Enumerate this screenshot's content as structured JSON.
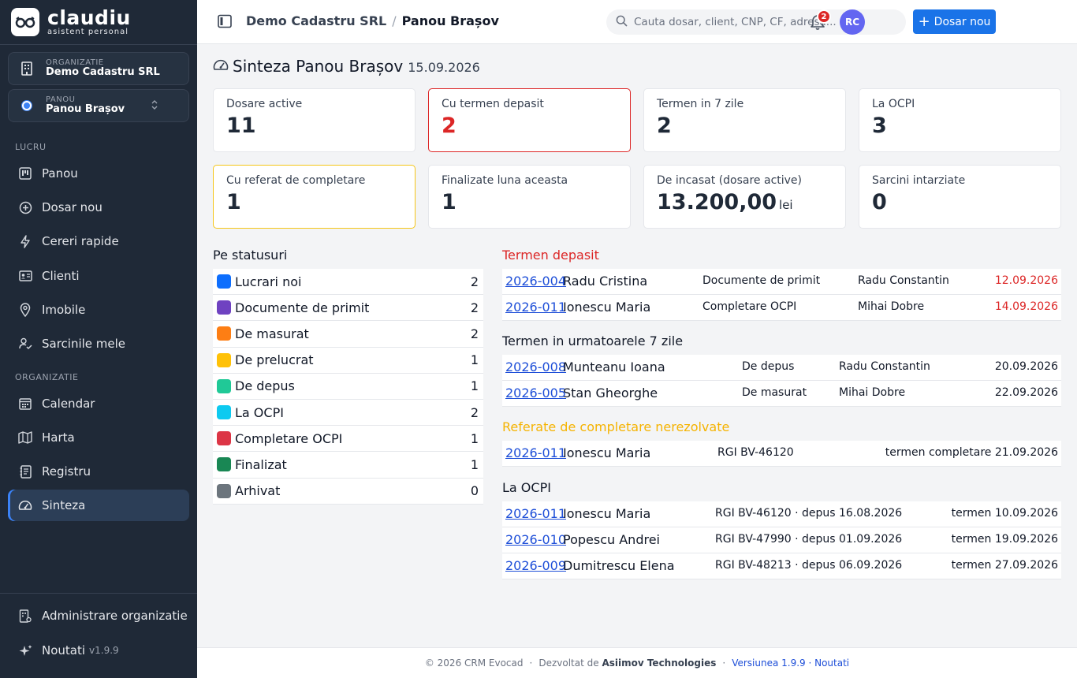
{
  "app": {
    "brand": "claudiu",
    "brand_sub": "asistent personal"
  },
  "org_selector": {
    "label": "ORGANIZATIE",
    "value": "Demo Cadastru SRL"
  },
  "panel_selector": {
    "label": "PANOU",
    "value": "Panou Brașov"
  },
  "sidebar": {
    "section_work": "LUCRU",
    "section_org": "ORGANIZATIE",
    "items": [
      {
        "label": "Panou",
        "icon": "kanban-icon"
      },
      {
        "label": "Dosar nou",
        "icon": "plus-circle-icon"
      },
      {
        "label": "Cereri rapide",
        "icon": "lightning-icon"
      },
      {
        "label": "Clienti",
        "icon": "id-card-icon"
      },
      {
        "label": "Imobile",
        "icon": "map-pin-icon"
      },
      {
        "label": "Sarcinile mele",
        "icon": "person-check-icon"
      },
      {
        "label": "Calendar",
        "icon": "calendar-icon"
      },
      {
        "label": "Harta",
        "icon": "map-icon"
      },
      {
        "label": "Registru",
        "icon": "journal-icon"
      },
      {
        "label": "Sinteza",
        "icon": "speedometer-icon",
        "active": true
      }
    ],
    "admin": "Administrare organizatie",
    "news": "Noutati",
    "version": "v1.9.9"
  },
  "header": {
    "breadcrumb_org": "Demo Cadastru SRL",
    "breadcrumb_sep": "/",
    "breadcrumb_current": "Panou Brașov",
    "search_placeholder": "Cauta dosar, client, CNP, CF, adresa...",
    "new_button": "Dosar nou",
    "notifications_count": "2",
    "avatar_initials": "RC"
  },
  "page": {
    "title": "Sinteza Panou Brașov",
    "date": "15.09.2026"
  },
  "cards": [
    {
      "label": "Dosare active",
      "value": "11"
    },
    {
      "label": "Cu termen depasit",
      "value": "2"
    },
    {
      "label": "Termen in 7 zile",
      "value": "2"
    },
    {
      "label": "La OCPI",
      "value": "3"
    },
    {
      "label": "Cu referat de completare",
      "value": "1"
    },
    {
      "label": "Finalizate luna aceasta",
      "value": "1"
    },
    {
      "label": "De incasat (dosare active)",
      "value": "13.200,00",
      "unit": "lei"
    },
    {
      "label": "Sarcini intarziate",
      "value": "0"
    }
  ],
  "statuses": {
    "title": "Pe statusuri",
    "items": [
      {
        "label": "Lucrari noi",
        "count": "2",
        "color": "#0d6efd"
      },
      {
        "label": "Documente de primit",
        "count": "2",
        "color": "#6f42c1"
      },
      {
        "label": "De masurat",
        "count": "2",
        "color": "#fd7e14"
      },
      {
        "label": "De prelucrat",
        "count": "1",
        "color": "#ffc107"
      },
      {
        "label": "De depus",
        "count": "1",
        "color": "#20c997"
      },
      {
        "label": "La OCPI",
        "count": "2",
        "color": "#0dcaf0"
      },
      {
        "label": "Completare OCPI",
        "count": "1",
        "color": "#dc3545"
      },
      {
        "label": "Finalizat",
        "count": "1",
        "color": "#198754"
      },
      {
        "label": "Arhivat",
        "count": "0",
        "color": "#6c757d"
      }
    ]
  },
  "overdue": {
    "title": "Termen depasit",
    "rows": [
      {
        "id": "2026-004",
        "client": "Radu Cristina",
        "status": "Documente de primit",
        "owner": "Radu Constantin",
        "date": "12.09.2026"
      },
      {
        "id": "2026-011",
        "client": "Ionescu Maria",
        "status": "Completare OCPI",
        "owner": "Mihai Dobre",
        "date": "14.09.2026"
      }
    ]
  },
  "next7": {
    "title": "Termen in urmatoarele 7 zile",
    "rows": [
      {
        "id": "2026-008",
        "client": "Munteanu Ioana",
        "status": "De depus",
        "owner": "Radu Constantin",
        "date": "20.09.2026"
      },
      {
        "id": "2026-005",
        "client": "Stan Gheorghe",
        "status": "De masurat",
        "owner": "Mihai Dobre",
        "date": "22.09.2026"
      }
    ]
  },
  "referrals": {
    "title": "Referate de completare nerezolvate",
    "rows": [
      {
        "id": "2026-011",
        "client": "Ionescu Maria",
        "rgi": "RGI BV-46120",
        "deadline": "termen completare 21.09.2026"
      }
    ]
  },
  "ocpi": {
    "title": "La OCPI",
    "rows": [
      {
        "id": "2026-011",
        "client": "Ionescu Maria",
        "info": "RGI BV-46120 · depus 16.08.2026",
        "deadline": "termen 10.09.2026"
      },
      {
        "id": "2026-010",
        "client": "Popescu Andrei",
        "info": "RGI BV-47990 · depus 01.09.2026",
        "deadline": "termen 19.09.2026"
      },
      {
        "id": "2026-009",
        "client": "Dumitrescu Elena",
        "info": "RGI BV-48213 · depus 06.09.2026",
        "deadline": "termen 27.09.2026"
      }
    ]
  },
  "footer": {
    "copyright": "© 2026 CRM Evocad",
    "dev_prefix": "Dezvoltat de",
    "dev_name": "Asiimov Technologies",
    "version_link": "Versiunea 1.9.9 · Noutati"
  }
}
